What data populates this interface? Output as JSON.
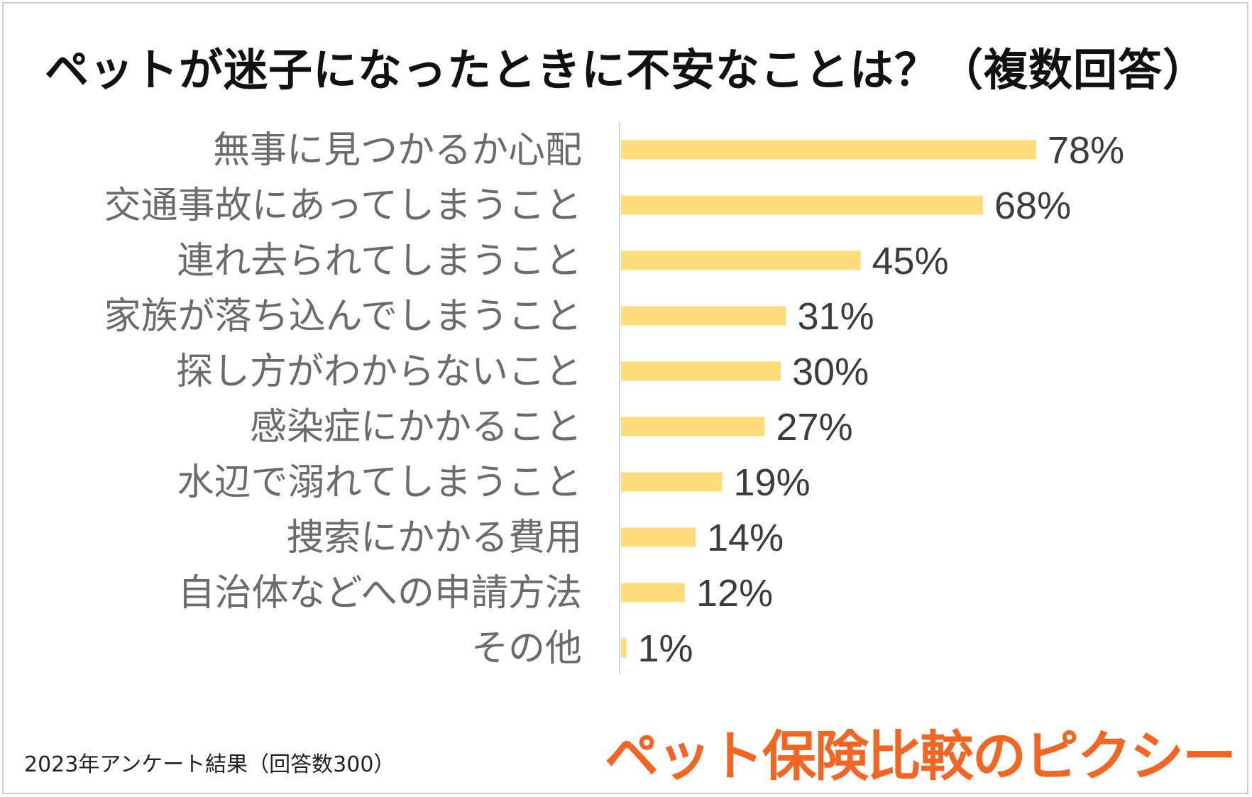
{
  "title": "ペットが迷子になったときに不安なことは？（複数回答）",
  "chart_data": {
    "type": "bar",
    "orientation": "horizontal",
    "title": "ペットが迷子になったときに不安なことは？（複数回答）",
    "categories": [
      "無事に見つかるか心配",
      "交通事故にあってしまうこと",
      "連れ去られてしまうこと",
      "家族が落ち込んでしまうこと",
      "探し方がわからないこと",
      "感染症にかかること",
      "水辺で溺れてしまうこと",
      "捜索にかかる費用",
      "自治体などへの申請方法",
      "その他"
    ],
    "values": [
      78,
      68,
      45,
      31,
      30,
      27,
      19,
      14,
      12,
      1
    ],
    "value_labels": [
      "78%",
      "68%",
      "45%",
      "31%",
      "30%",
      "27%",
      "19%",
      "14%",
      "12%",
      "1%"
    ],
    "unit": "%",
    "xlim": [
      0,
      100
    ],
    "bar_color": "#FFDE7A",
    "grid": false
  },
  "footnote": "2023年アンケート結果（回答数300）",
  "brand": {
    "text": "ペット保険比較のピクシー",
    "color": "#F26522"
  }
}
